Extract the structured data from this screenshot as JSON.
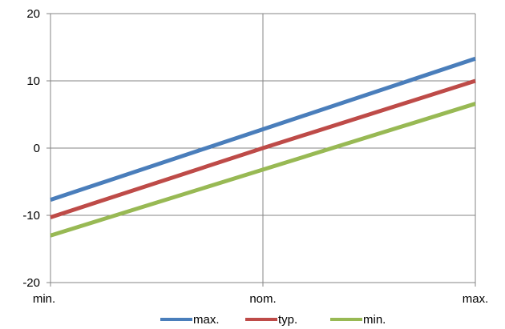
{
  "chart_data": {
    "type": "line",
    "categories": [
      "min.",
      "nom.",
      "max."
    ],
    "ylim": [
      -20,
      20
    ],
    "yticks": [
      -20,
      -10,
      0,
      10,
      20
    ],
    "grid": true,
    "legend_position": "bottom",
    "series": [
      {
        "name": "max.",
        "color": "#4a7ebb",
        "values": [
          -7.7,
          2.8,
          13.3
        ]
      },
      {
        "name": "typ.",
        "color": "#be4b48",
        "values": [
          -10.3,
          0,
          10.0
        ]
      },
      {
        "name": "min.",
        "color": "#98b954",
        "values": [
          -13.0,
          -3.2,
          6.6
        ]
      }
    ]
  }
}
